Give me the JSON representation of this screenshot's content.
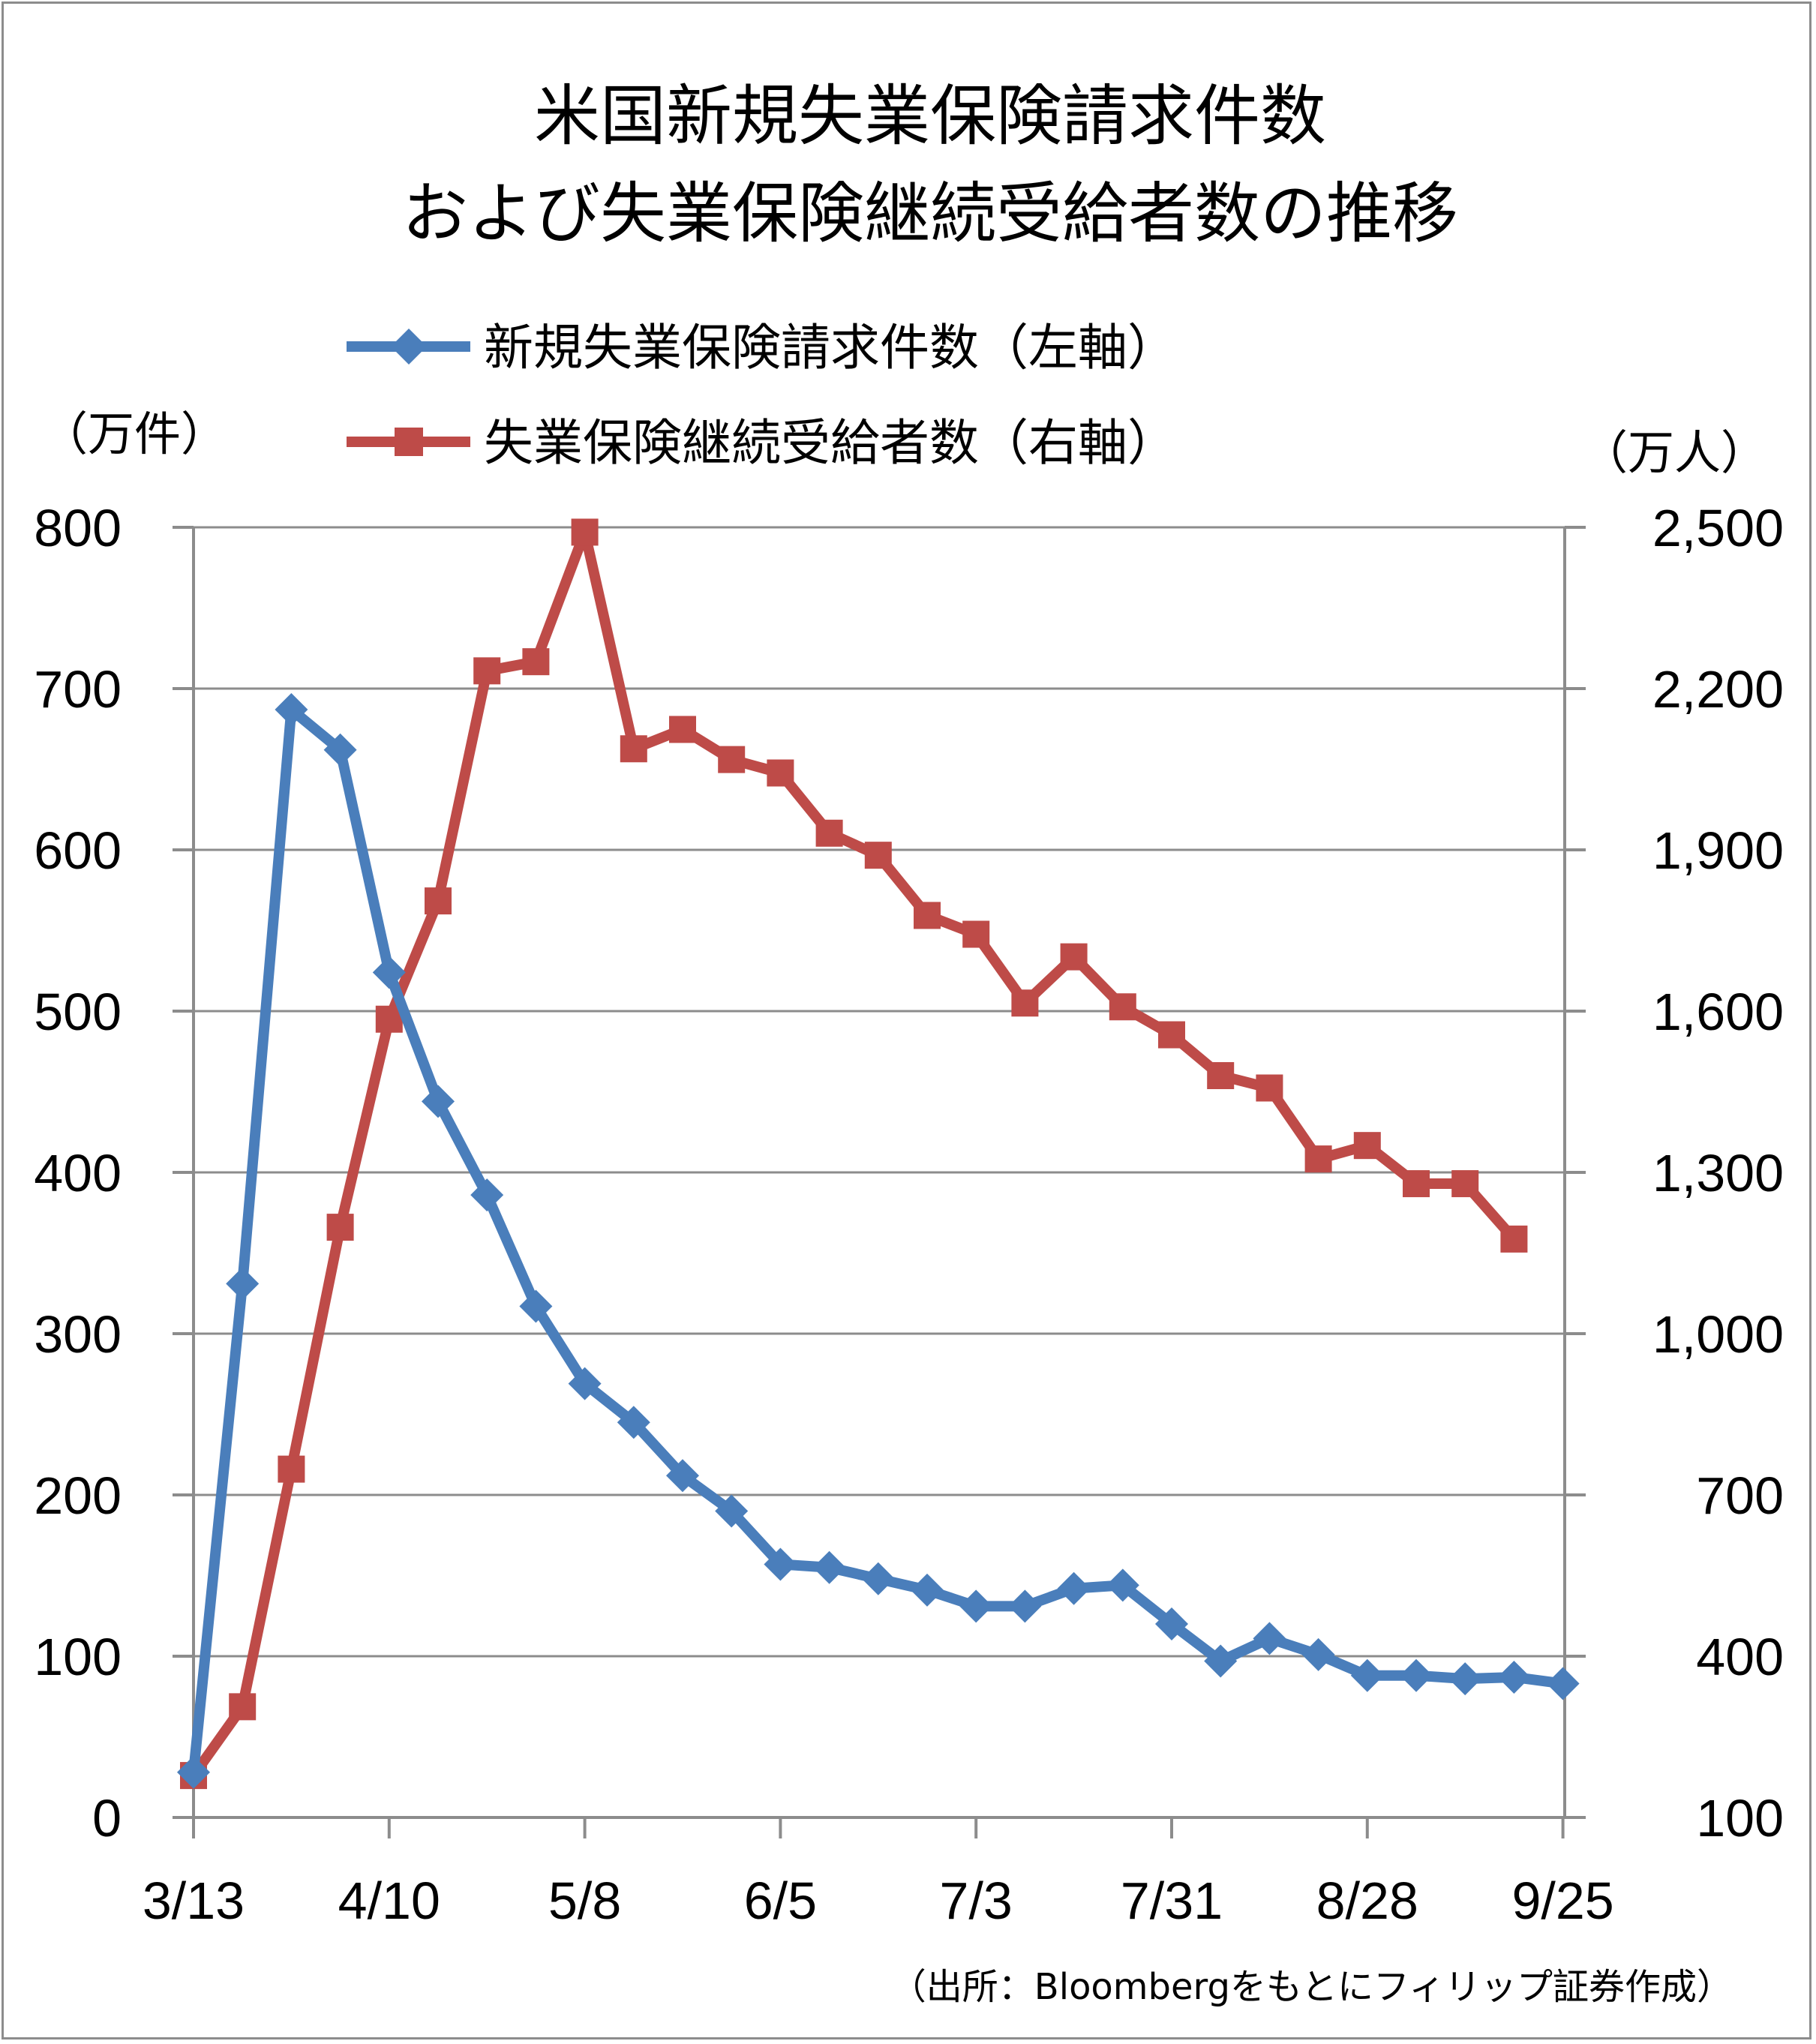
{
  "chart_data": {
    "type": "line",
    "title_lines": [
      "米国新規失業保険請求件数",
      "および失業保険継続受給者数の推移"
    ],
    "left_unit": "（万件）",
    "right_unit": "（万人）",
    "source": "（出所：Bloombergをもとにフィリップ証券作成）",
    "x_tick_labels": [
      "3/13",
      "4/10",
      "5/8",
      "6/5",
      "7/3",
      "7/31",
      "8/28",
      "9/25"
    ],
    "left_ylim": [
      0,
      800
    ],
    "left_ticks": [
      "0",
      "100",
      "200",
      "300",
      "400",
      "500",
      "600",
      "700",
      "800"
    ],
    "right_ylim": [
      100,
      2500
    ],
    "right_ticks": [
      "100",
      "400",
      "700",
      "1,000",
      "1,300",
      "1,600",
      "1,900",
      "2,200",
      "2,500"
    ],
    "grid": true,
    "legend_position": "top",
    "series": [
      {
        "name": "新規失業保険請求件数（左軸）",
        "axis": "left",
        "color": "#4a7ebb",
        "marker": "diamond",
        "x": [
          "3/13",
          "3/20",
          "3/27",
          "4/3",
          "4/10",
          "4/17",
          "4/24",
          "5/1",
          "5/8",
          "5/15",
          "5/22",
          "5/29",
          "6/5",
          "6/12",
          "6/19",
          "6/26",
          "7/3",
          "7/10",
          "7/17",
          "7/24",
          "7/31",
          "8/7",
          "8/14",
          "8/21",
          "8/28",
          "9/4",
          "9/11",
          "9/18",
          "9/25"
        ],
        "values": [
          28,
          331,
          687,
          662,
          524,
          444,
          386,
          317,
          269,
          245,
          212,
          190,
          157,
          155,
          148,
          141,
          131,
          131,
          142,
          144,
          120,
          97,
          111,
          101,
          88,
          88,
          86,
          87,
          83
        ]
      },
      {
        "name": "失業保険継続受給者数（右軸）",
        "axis": "right",
        "color": "#be4b48",
        "marker": "square",
        "x": [
          "3/13",
          "3/20",
          "3/27",
          "4/3",
          "4/10",
          "4/17",
          "4/24",
          "5/1",
          "5/8",
          "5/15",
          "5/22",
          "5/29",
          "6/5",
          "6/12",
          "6/19",
          "6/26",
          "7/3",
          "7/10",
          "7/17",
          "7/24",
          "7/31",
          "8/7",
          "8/14",
          "8/21",
          "8/28",
          "9/4",
          "9/11",
          "9/18"
        ],
        "values": [
          178,
          306,
          748,
          1198,
          1585,
          1805,
          2233,
          2250,
          2491,
          2088,
          2124,
          2068,
          2043,
          1931,
          1890,
          1778,
          1743,
          1615,
          1701,
          1608,
          1556,
          1480,
          1457,
          1325,
          1350,
          1279,
          1279,
          1176
        ]
      }
    ]
  }
}
